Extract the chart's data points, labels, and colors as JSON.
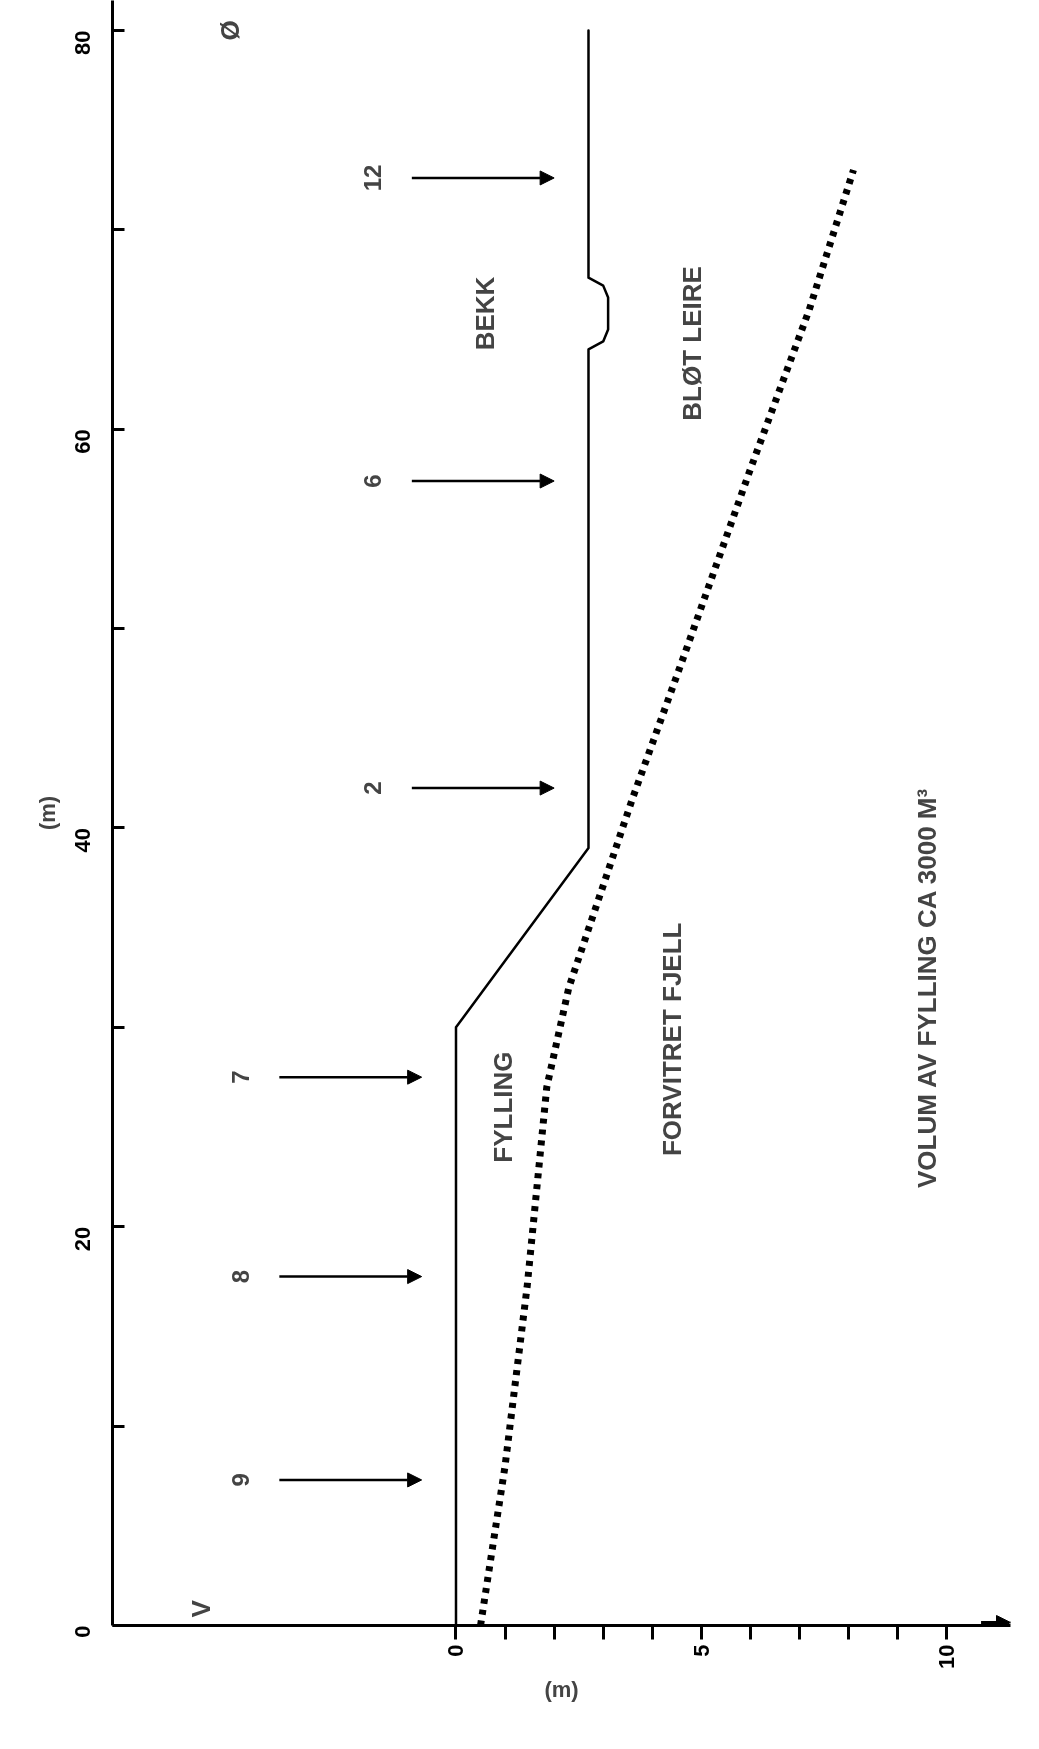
{
  "chart_data": {
    "type": "line",
    "xlabel": "(m)",
    "ylabel": "(m)",
    "xlim": [
      -7.0,
      11.3
    ],
    "ylim": [
      0,
      81.5
    ],
    "xticks": [
      0,
      {
        "value": 1,
        "label": null
      },
      {
        "value": 2,
        "label": null
      },
      {
        "value": 3,
        "label": null
      },
      {
        "value": 4,
        "label": null
      },
      5,
      {
        "value": 6,
        "label": null
      },
      {
        "value": 7,
        "label": null
      },
      {
        "value": 8,
        "label": null
      },
      {
        "value": 9,
        "label": null
      },
      10
    ],
    "yticks": [
      0,
      {
        "value": 10,
        "label": null
      },
      20,
      {
        "value": 30,
        "label": null
      },
      40,
      {
        "value": 50,
        "label": null
      },
      60,
      {
        "value": 70,
        "label": null
      },
      80
    ],
    "series": [
      {
        "color": "#000000",
        "line_style": "solid",
        "x": [
          0,
          0,
          2.7,
          2.7,
          3.0,
          3.1,
          3.1,
          3.0,
          2.7,
          2.7
        ],
        "values": [
          0,
          30,
          39,
          64,
          64.4,
          65,
          66.6,
          67.2,
          67.6,
          80
        ]
      },
      {
        "color": "#000000",
        "line_style": "dotted",
        "x": [
          0.5,
          1.0,
          1.45,
          1.85,
          2.3,
          3.6,
          4.7,
          6.0,
          7.2,
          8.1
        ],
        "values": [
          0,
          8,
          17,
          27,
          32,
          41.5,
          49,
          58,
          66,
          73
        ]
      }
    ],
    "grid": false,
    "marker": "none",
    "annotations": [
      "V",
      "Ø",
      "9",
      "8",
      "7",
      "2",
      "6",
      "12",
      "BEKK",
      "BLØT LEIRE",
      "FYLLING",
      "FORVITRET FJELL",
      "VOLUM AV FYLLING CA 3000 M³"
    ]
  }
}
